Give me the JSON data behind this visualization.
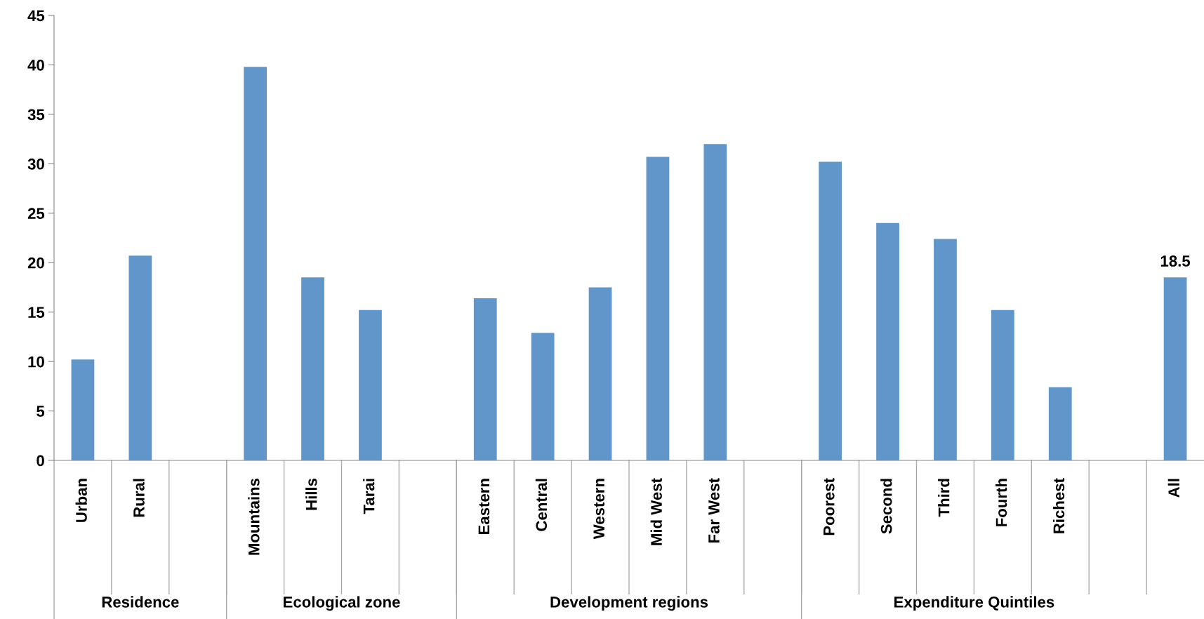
{
  "chart_data": {
    "type": "bar",
    "categories": [
      "Urban",
      "Rural",
      null,
      "Mountains",
      "Hills",
      "Tarai",
      null,
      "Eastern",
      "Central",
      "Western",
      "Mid West",
      "Far West",
      null,
      "Poorest",
      "Second",
      "Third",
      "Fourth",
      "Richest",
      null,
      "All"
    ],
    "values": [
      10.2,
      20.7,
      null,
      39.8,
      18.5,
      15.2,
      null,
      16.4,
      12.9,
      17.5,
      30.7,
      32.0,
      null,
      30.2,
      24.0,
      22.4,
      15.2,
      7.4,
      null,
      18.5
    ],
    "value_labels": [
      null,
      null,
      null,
      null,
      null,
      null,
      null,
      null,
      null,
      null,
      null,
      null,
      null,
      null,
      null,
      null,
      null,
      null,
      null,
      "18.5"
    ],
    "color": "#6096c9",
    "ylim": [
      0,
      45
    ],
    "yticks": [
      0,
      5,
      10,
      15,
      20,
      25,
      30,
      35,
      40,
      45
    ],
    "grid": false,
    "legend": false,
    "annotations": [
      "Residence",
      "Ecological zone",
      "Development regions",
      "Expenditure Quintiles"
    ]
  }
}
